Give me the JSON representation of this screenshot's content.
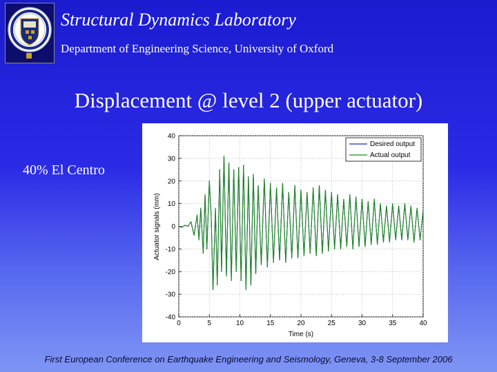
{
  "header": {
    "lab_title": "Structural Dynamics Laboratory",
    "department": "Department of Engineering Science, University of Oxford",
    "logo_icon": "oxford-crest-icon"
  },
  "slide": {
    "title": "Displacement @ level 2  (upper actuator)",
    "case_label": "40% El Centro"
  },
  "footer": {
    "text": "First European Conference on Earthquake Engineering and Seismology, Geneva, 3-8 September 2006"
  },
  "chart_data": {
    "type": "line",
    "title": "",
    "xlabel": "Time (s)",
    "ylabel": "Actuator signals (mm)",
    "xlim": [
      0,
      40
    ],
    "ylim": [
      -40,
      40
    ],
    "xticks": [
      0,
      5,
      10,
      15,
      20,
      25,
      30,
      35,
      40
    ],
    "yticks": [
      40,
      30,
      20,
      10,
      0,
      -10,
      -20,
      -30,
      -40
    ],
    "grid": true,
    "legend_position": "top-right",
    "series": [
      {
        "name": "Desired output",
        "color": "#1f2bb8",
        "x": [
          0,
          0.5,
          1,
          1.5,
          2,
          2.5,
          3,
          3.3,
          3.6,
          4,
          4.3,
          4.6,
          5,
          5.3,
          5.6,
          6,
          6.3,
          6.7,
          7,
          7.4,
          7.8,
          8.2,
          8.6,
          9,
          9.4,
          9.8,
          10.2,
          10.6,
          11,
          11.4,
          11.8,
          12.2,
          12.6,
          13,
          13.5,
          14,
          14.5,
          15,
          15.5,
          16,
          16.5,
          17,
          17.5,
          18,
          18.5,
          19,
          19.5,
          20,
          20.5,
          21,
          21.5,
          22,
          22.5,
          23,
          23.5,
          24,
          24.5,
          25,
          25.5,
          26,
          26.5,
          27,
          27.5,
          28,
          28.5,
          29,
          29.5,
          30,
          30.5,
          31,
          31.5,
          32,
          32.5,
          33,
          33.5,
          34,
          34.5,
          35,
          35.5,
          36,
          36.5,
          37,
          37.5,
          38,
          38.5,
          39,
          39.5,
          40
        ],
        "values": [
          0,
          -0.5,
          0.5,
          0,
          2,
          -4,
          5,
          -6,
          8,
          -12,
          14,
          -10,
          20,
          5,
          -28,
          8,
          -26,
          25,
          -20,
          31,
          -22,
          28,
          -24,
          25,
          -20,
          26,
          -24,
          27,
          -28,
          22,
          -26,
          23,
          -21,
          18,
          -17,
          21,
          -18,
          19,
          -16,
          17,
          -15,
          19,
          -16,
          15,
          -14,
          18,
          -14,
          16,
          -13,
          15,
          -12,
          17,
          -13,
          18,
          -12,
          16,
          -11,
          15,
          -10,
          14,
          -10,
          12,
          -9,
          14,
          -10,
          13,
          -9,
          12,
          -9,
          11,
          -8,
          12,
          -8,
          10,
          -7,
          9,
          -7,
          10,
          -6,
          9,
          -6,
          10,
          -6,
          9,
          -7,
          8,
          -6,
          7
        ]
      },
      {
        "name": "Actual output",
        "color": "#1f8a1f",
        "x": [
          0,
          0.5,
          1,
          1.5,
          2,
          2.5,
          3,
          3.3,
          3.6,
          4,
          4.3,
          4.6,
          5,
          5.3,
          5.6,
          6,
          6.3,
          6.7,
          7,
          7.4,
          7.8,
          8.2,
          8.6,
          9,
          9.4,
          9.8,
          10.2,
          10.6,
          11,
          11.4,
          11.8,
          12.2,
          12.6,
          13,
          13.5,
          14,
          14.5,
          15,
          15.5,
          16,
          16.5,
          17,
          17.5,
          18,
          18.5,
          19,
          19.5,
          20,
          20.5,
          21,
          21.5,
          22,
          22.5,
          23,
          23.5,
          24,
          24.5,
          25,
          25.5,
          26,
          26.5,
          27,
          27.5,
          28,
          28.5,
          29,
          29.5,
          30,
          30.5,
          31,
          31.5,
          32,
          32.5,
          33,
          33.5,
          34,
          34.5,
          35,
          35.5,
          36,
          36.5,
          37,
          37.5,
          38,
          38.5,
          39,
          39.5,
          40
        ],
        "values": [
          0,
          -0.5,
          0.5,
          0,
          2,
          -4,
          5,
          -6,
          8,
          -12,
          14,
          -10,
          20,
          5,
          -28,
          8,
          -26,
          25,
          -20,
          31,
          -22,
          28,
          -24,
          25,
          -20,
          26,
          -24,
          27,
          -28,
          22,
          -26,
          23,
          -21,
          18,
          -17,
          21,
          -18,
          19,
          -16,
          17,
          -15,
          19,
          -16,
          15,
          -14,
          18,
          -14,
          16,
          -13,
          15,
          -12,
          17,
          -13,
          18,
          -12,
          16,
          -11,
          15,
          -10,
          14,
          -10,
          12,
          -9,
          14,
          -10,
          13,
          -9,
          12,
          -9,
          11,
          -8,
          12,
          -8,
          10,
          -7,
          9,
          -7,
          10,
          -6,
          9,
          -6,
          10,
          -6,
          9,
          -7,
          8,
          -6,
          7
        ]
      }
    ]
  }
}
